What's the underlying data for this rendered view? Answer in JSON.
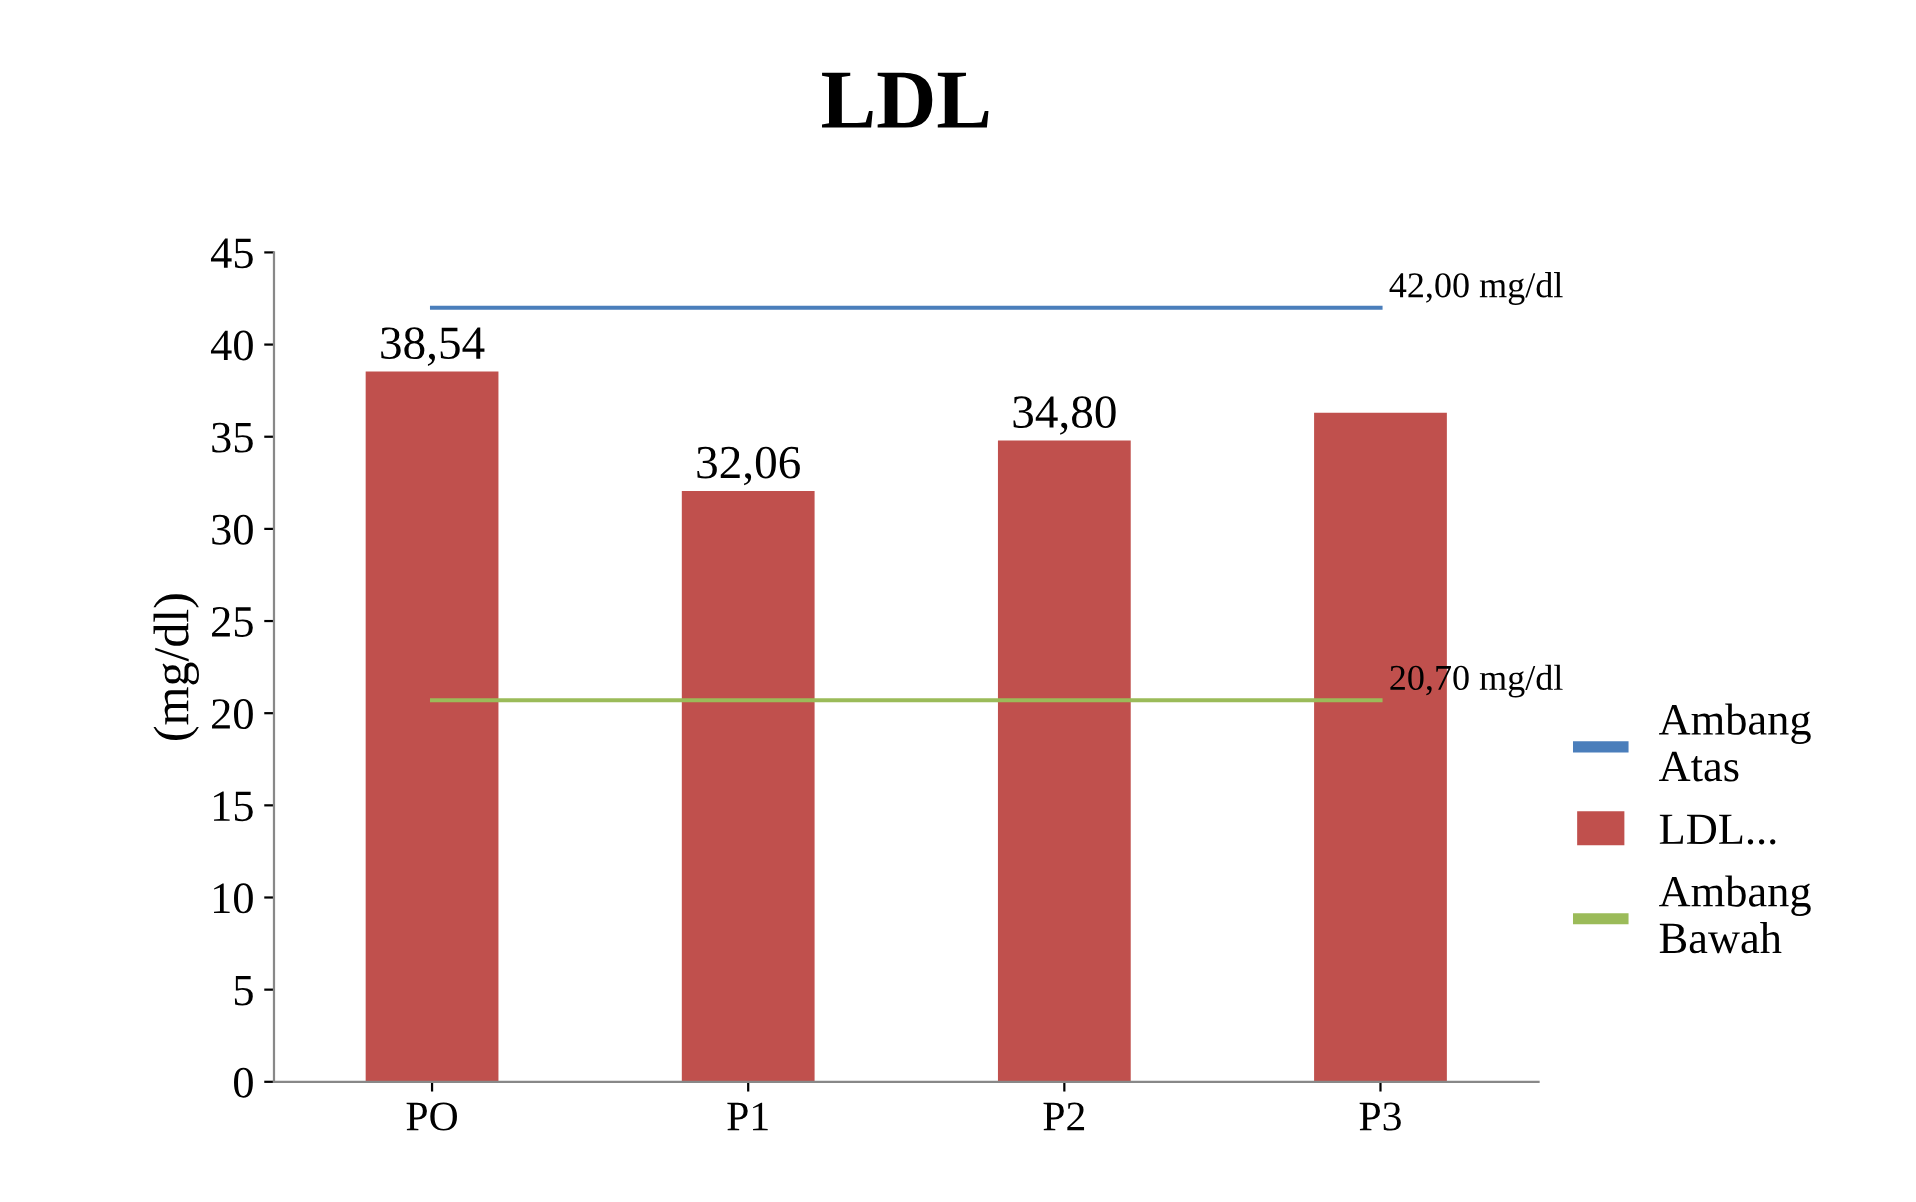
{
  "chart_data": {
    "type": "bar",
    "title": "LDL",
    "ylabel": "(mg/dl)",
    "categories": [
      "PO",
      "P1",
      "P2",
      "P3"
    ],
    "series": [
      {
        "name": "Ambang Atas",
        "type": "line",
        "color": "#4a7ebb",
        "values": [
          42,
          42,
          42,
          42
        ],
        "value_labels": [
          null,
          null,
          null,
          "42,00 mg/dl"
        ]
      },
      {
        "name": "LDL...",
        "color": "#c0504d",
        "values": [
          38.54,
          32.06,
          34.8,
          36.3
        ],
        "value_labels": [
          "38,54",
          "32,06",
          "34,80",
          null
        ]
      },
      {
        "name": "Ambang Bawah",
        "type": "line",
        "color": "#9bbb59",
        "values": [
          20.7,
          20.7,
          20.7,
          20.7
        ],
        "value_labels": [
          null,
          null,
          null,
          "20,70 mg/dl"
        ]
      }
    ],
    "ylim": [
      0,
      45
    ],
    "yticks": [
      0,
      5,
      10,
      15,
      20,
      25,
      30,
      35,
      40,
      45
    ],
    "grid": false,
    "legend": "right",
    "marker": "none",
    "line_style": "solid"
  }
}
